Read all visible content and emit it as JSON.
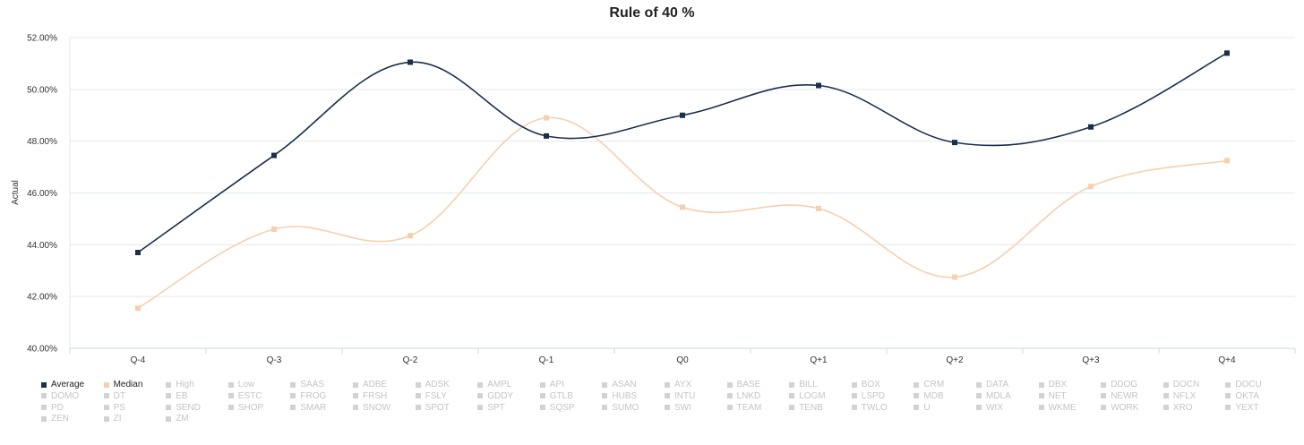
{
  "colors": {
    "average": "#1b2f4b",
    "median": "#f6cfae",
    "grid": "#e3e8ec",
    "axis": "#cbd8e2"
  },
  "chart_data": {
    "type": "line",
    "title": "Rule of 40 %",
    "xlabel": "",
    "ylabel": "Actual",
    "ylim": [
      40,
      52
    ],
    "yticks": [
      "40.00%",
      "42.00%",
      "44.00%",
      "46.00%",
      "48.00%",
      "50.00%",
      "52.00%"
    ],
    "categories": [
      "Q-4",
      "Q-3",
      "Q-2",
      "Q-1",
      "Q0",
      "Q+1",
      "Q+2",
      "Q+3",
      "Q+4"
    ],
    "grid": true,
    "legend_position": "bottom",
    "series": [
      {
        "name": "Average",
        "color_key": "average",
        "values": [
          43.7,
          47.45,
          51.05,
          48.2,
          49.0,
          50.15,
          47.95,
          48.55,
          51.4
        ]
      },
      {
        "name": "Median",
        "color_key": "median",
        "values": [
          41.55,
          44.6,
          44.35,
          48.9,
          45.45,
          45.4,
          42.75,
          46.25,
          47.25
        ]
      }
    ]
  },
  "legend": {
    "active": [
      "Average",
      "Median"
    ],
    "items": [
      "Average",
      "Median",
      "High",
      "Low",
      "SAAS",
      "ADBE",
      "ADSK",
      "AMPL",
      "API",
      "ASAN",
      "AYX",
      "BASE",
      "BILL",
      "BOX",
      "CRM",
      "DATA",
      "DBX",
      "DDOG",
      "DOCN",
      "DOCU",
      "DOMO",
      "DT",
      "EB",
      "ESTC",
      "FROG",
      "FRSH",
      "FSLY",
      "GDDY",
      "GTLB",
      "HUBS",
      "INTU",
      "LNKD",
      "LOGM",
      "LSPD",
      "MDB",
      "MDLA",
      "NET",
      "NEWR",
      "NFLX",
      "OKTA",
      "PD",
      "PS",
      "SEND",
      "SHOP",
      "SMAR",
      "SNOW",
      "SPOT",
      "SPT",
      "SQSP",
      "SUMO",
      "SWI",
      "TEAM",
      "TENB",
      "TWLO",
      "U",
      "WIX",
      "WKME",
      "WORK",
      "XRO",
      "YEXT",
      "ZEN",
      "ZI",
      "ZM"
    ]
  }
}
